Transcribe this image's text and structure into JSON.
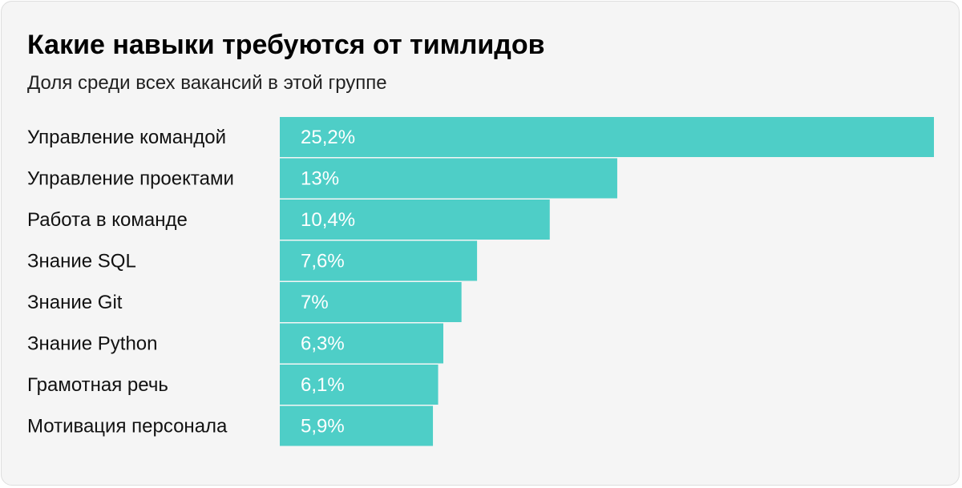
{
  "chart_data": {
    "type": "bar",
    "orientation": "horizontal",
    "title": "Какие навыки требуются от тимлидов",
    "subtitle": "Доля среди всех вакансий в этой группе",
    "categories": [
      "Управление командой",
      "Управление проектами",
      "Работа в команде",
      "Знание SQL",
      "Знание Git",
      "Знание Python",
      "Грамотная речь",
      "Мотивация персонала"
    ],
    "values": [
      25.2,
      13,
      10.4,
      7.6,
      7,
      6.3,
      6.1,
      5.9
    ],
    "value_labels": [
      "25,2%",
      "13%",
      "10,4%",
      "7,6%",
      "7%",
      "6,3%",
      "6,1%",
      "5,9%"
    ],
    "unit": "%",
    "grid": false,
    "legend": "none",
    "bar_color": "#4ecec7"
  }
}
